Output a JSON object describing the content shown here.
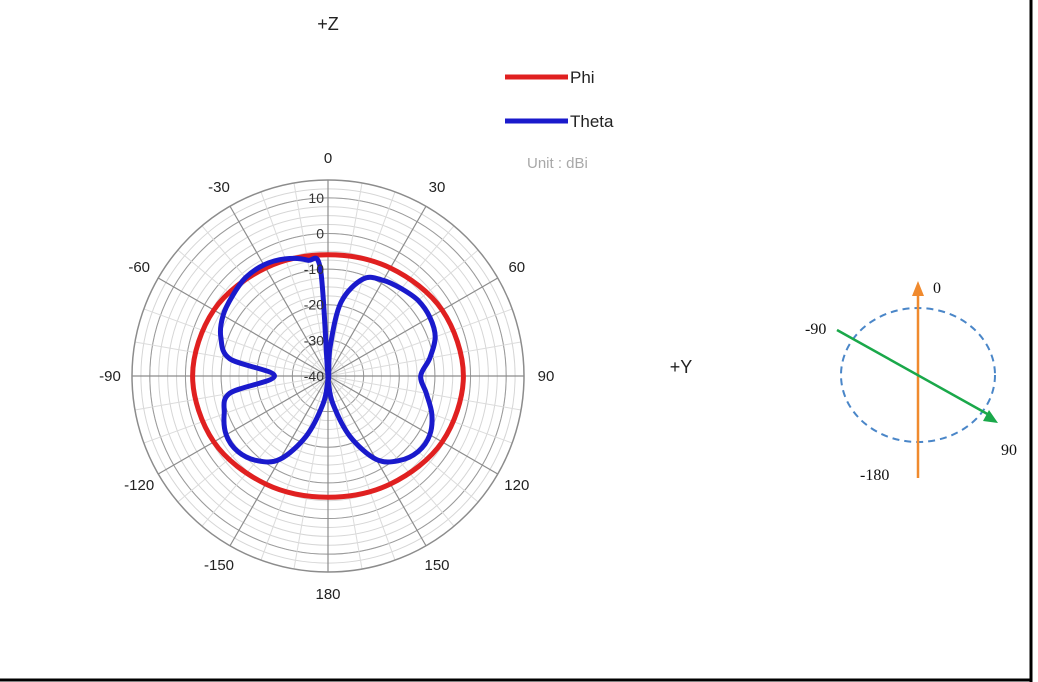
{
  "chart_data": {
    "type": "polar-line",
    "axis_titles": {
      "vertical": "+Z",
      "horizontal": "+Y"
    },
    "unit_label": "Unit : dBi",
    "angle_labels": [
      "0",
      "30",
      "60",
      "90",
      "120",
      "150",
      "180",
      "-150",
      "-120",
      "-90",
      "-60",
      "-30"
    ],
    "radial_labels": [
      "10",
      "0",
      "-10",
      "-20",
      "-30",
      "-40"
    ],
    "rlim": [
      -40,
      15
    ],
    "grid": true,
    "legend_position": "top-right",
    "series": [
      {
        "name": "Phi",
        "color": "#e02020",
        "angles_deg": [
          0,
          30,
          60,
          90,
          120,
          150,
          180,
          -150,
          -120,
          -90,
          -60,
          -30
        ],
        "gain_dbi": [
          -6,
          -5,
          -3,
          -2,
          -3,
          -5,
          -6,
          -5,
          -3,
          -2,
          -3,
          -5
        ]
      },
      {
        "name": "Theta",
        "color": "#1a1acc",
        "angles_deg": [
          0,
          4,
          10,
          20,
          30,
          40,
          50,
          60,
          70,
          80,
          90,
          100,
          110,
          120,
          130,
          140,
          150,
          160,
          170,
          176,
          180,
          -176,
          -170,
          -160,
          -150,
          -140,
          -130,
          -120,
          -110,
          -100,
          -90,
          -80,
          -70,
          -60,
          -50,
          -40,
          -30,
          -20,
          -10,
          -4
        ],
        "gain_dbi": [
          -40,
          -32,
          -19,
          -11,
          -9,
          -8,
          -7,
          -7,
          -8,
          -11,
          -14,
          -12,
          -9,
          -7,
          -7,
          -9,
          -13,
          -22,
          -32,
          -38,
          -40,
          -38,
          -32,
          -22,
          -13,
          -9,
          -7,
          -7,
          -9,
          -12,
          -25,
          -12,
          -8,
          -6,
          -5,
          -4,
          -4,
          -5,
          -7,
          -10
        ]
      }
    ]
  },
  "orientation_diagram": {
    "labels": {
      "top": "0",
      "left": "-90",
      "right": "90",
      "bottom": "-180"
    },
    "colors": {
      "vertical_arrow": "#f08a2e",
      "diagonal_arrow": "#1aa84a",
      "ellipse": "#4a86c8"
    }
  },
  "frame_color": "#000000"
}
